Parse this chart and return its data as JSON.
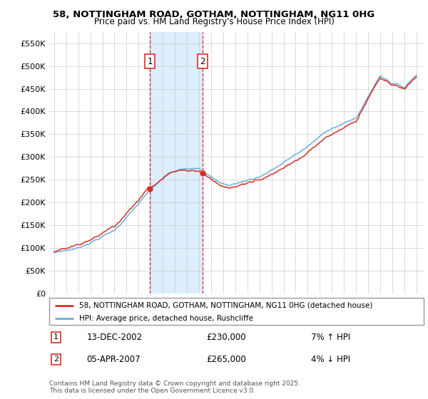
{
  "title_line1": "58, NOTTINGHAM ROAD, GOTHAM, NOTTINGHAM, NG11 0HG",
  "title_line2": "Price paid vs. HM Land Registry's House Price Index (HPI)",
  "ylabel_ticks": [
    "£0",
    "£50K",
    "£100K",
    "£150K",
    "£200K",
    "£250K",
    "£300K",
    "£350K",
    "£400K",
    "£450K",
    "£500K",
    "£550K"
  ],
  "ytick_values": [
    0,
    50000,
    100000,
    150000,
    200000,
    250000,
    300000,
    350000,
    400000,
    450000,
    500000,
    550000
  ],
  "ylim": [
    0,
    575000
  ],
  "hpi_color": "#6baed6",
  "price_color": "#d73027",
  "sale1_year": 2002.95,
  "sale1_price": 230000,
  "sale2_year": 2007.27,
  "sale2_price": 265000,
  "sale1_date": "13-DEC-2002",
  "sale1_hpi_diff": "7% ↑ HPI",
  "sale2_date": "05-APR-2007",
  "sale2_hpi_diff": "4% ↓ HPI",
  "legend_line1": "58, NOTTINGHAM ROAD, GOTHAM, NOTTINGHAM, NG11 0HG (detached house)",
  "legend_line2": "HPI: Average price, detached house, Rushcliffe",
  "footnote": "Contains HM Land Registry data © Crown copyright and database right 2025.\nThis data is licensed under the Open Government Licence v3.0.",
  "background_color": "#ffffff",
  "grid_color": "#cccccc",
  "shaded_region_color": "#ddeeff"
}
